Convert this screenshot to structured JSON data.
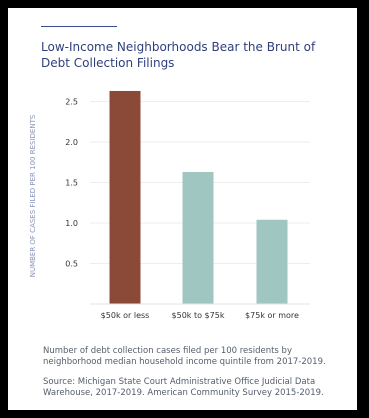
{
  "chart_data": {
    "type": "bar",
    "title": "Low-Income Neighborhoods Bear the Brunt of Debt Collection Filings",
    "xlabel": "",
    "ylabel": "NUMBER OF CASES FILED PER 100 RESIDENTS",
    "categories": [
      "$50k or less",
      "$50k to $75k",
      "$75k or more"
    ],
    "values": [
      2.63,
      1.63,
      1.04
    ],
    "yticks": [
      "0.5",
      "1.0",
      "1.5",
      "2.0",
      "2.5"
    ],
    "ylim": [
      0,
      2.7
    ],
    "grid": true,
    "colors": {
      "highlight": "#8b4a37",
      "default": "#9fc6c1",
      "title": "#2e3f7c",
      "axis_label": "#8a93b8"
    }
  },
  "caption": "Number of debt collection cases filed per 100 residents by neighborhood median household income quintile from 2017-2019.",
  "source": "Source: Michigan State Court Administrative Office Judicial Data Warehouse, 2017-2019. American Community Survey 2015-2019."
}
